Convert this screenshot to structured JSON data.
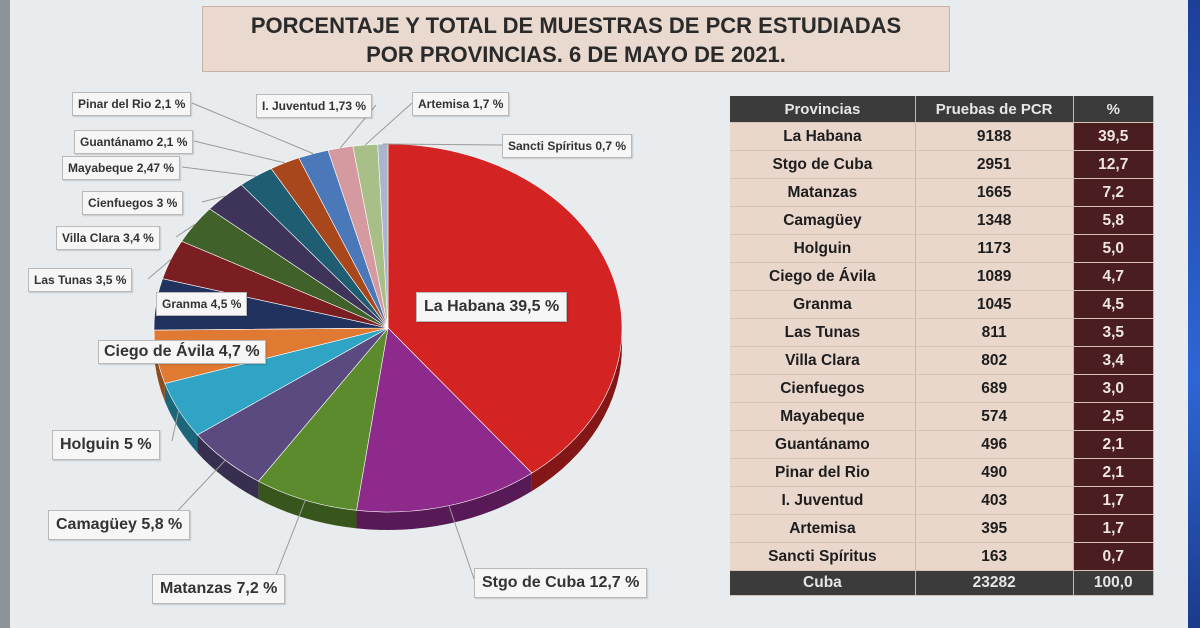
{
  "title": {
    "line1": "PORCENTAJE Y TOTAL DE MUESTRAS DE PCR ESTUDIADAS",
    "line2": "POR PROVINCIAS. 6 DE MAYO DE 2021."
  },
  "chart_data": {
    "type": "pie",
    "slices": [
      {
        "label": "La Habana 39,5 %",
        "value": 39.5,
        "color": "#d42323"
      },
      {
        "label": "Stgo de Cuba 12,7 %",
        "value": 12.7,
        "color": "#8e2a8c"
      },
      {
        "label": "Matanzas 7,2 %",
        "value": 7.2,
        "color": "#5b8b2c"
      },
      {
        "label": "Camagüey 5,8 %",
        "value": 5.8,
        "color": "#5a4a80"
      },
      {
        "label": "Holguin 5 %",
        "value": 5.0,
        "color": "#2fa4c4"
      },
      {
        "label": "Ciego de Ávila 4,7 %",
        "value": 4.7,
        "color": "#e07a33"
      },
      {
        "label": "Granma 4,5 %",
        "value": 4.5,
        "color": "#22325e"
      },
      {
        "label": "Las Tunas 3,5 %",
        "value": 3.5,
        "color": "#7a1e22"
      },
      {
        "label": "Villa Clara 3,4 %",
        "value": 3.4,
        "color": "#40612a"
      },
      {
        "label": "Cienfuegos 3 %",
        "value": 3.0,
        "color": "#3e3358"
      },
      {
        "label": "Mayabeque 2,47 %",
        "value": 2.47,
        "color": "#1f5e72"
      },
      {
        "label": "Guantánamo 2,1 %",
        "value": 2.1,
        "color": "#a8461c"
      },
      {
        "label": "Pinar del Rio 2,1 %",
        "value": 2.1,
        "color": "#4a78b8"
      },
      {
        "label": "I.  Juventud 1,73 %",
        "value": 1.73,
        "color": "#d59aa0"
      },
      {
        "label": "Artemisa 1,7 %",
        "value": 1.7,
        "color": "#a8c088"
      },
      {
        "label": "Sancti Spíritus 0,7 %",
        "value": 0.7,
        "color": "#a9b5cc"
      }
    ]
  },
  "table": {
    "headers": [
      "Provincias",
      "Pruebas de PCR",
      "%"
    ],
    "rows": [
      [
        "La Habana",
        "9188",
        "39,5"
      ],
      [
        "Stgo de Cuba",
        "2951",
        "12,7"
      ],
      [
        "Matanzas",
        "1665",
        "7,2"
      ],
      [
        "Camagüey",
        "1348",
        "5,8"
      ],
      [
        "Holguin",
        "1173",
        "5,0"
      ],
      [
        "Ciego de Ávila",
        "1089",
        "4,7"
      ],
      [
        "Granma",
        "1045",
        "4,5"
      ],
      [
        "Las Tunas",
        "811",
        "3,5"
      ],
      [
        "Villa Clara",
        "802",
        "3,4"
      ],
      [
        "Cienfuegos",
        "689",
        "3,0"
      ],
      [
        "Mayabeque",
        "574",
        "2,5"
      ],
      [
        "Guantánamo",
        "496",
        "2,1"
      ],
      [
        "Pinar del Rio",
        "490",
        "2,1"
      ],
      [
        "I.  Juventud",
        "403",
        "1,7"
      ],
      [
        "Artemisa",
        "395",
        "1,7"
      ],
      [
        "Sancti Spíritus",
        "163",
        "0,7"
      ]
    ],
    "total": [
      "Cuba",
      "23282",
      "100,0"
    ]
  }
}
